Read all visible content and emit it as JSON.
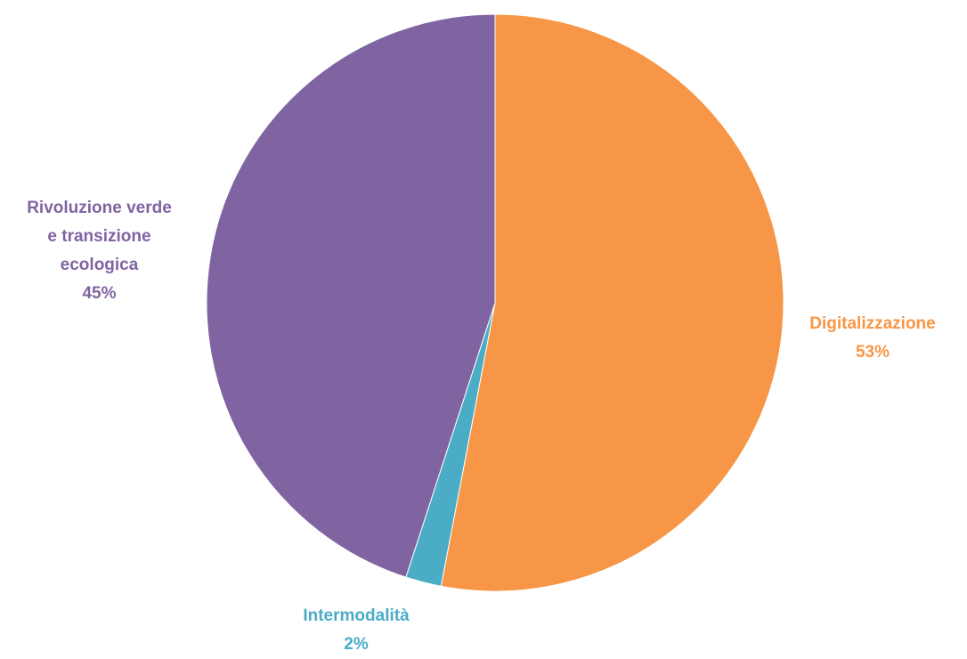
{
  "chart_data": {
    "type": "pie",
    "title": "",
    "slices": [
      {
        "label": "Digitalizzazione",
        "value": 53,
        "value_label": "53%",
        "color": "#F79646"
      },
      {
        "label": "Intermodalità",
        "value": 2,
        "value_label": "2%",
        "color": "#4BACC6"
      },
      {
        "label": "Rivoluzione verde\ne transizione\necologica",
        "value": 45,
        "value_label": "45%",
        "color": "#8064A2"
      }
    ],
    "start_angle": "12 o'clock",
    "direction": "clockwise",
    "legend": "none",
    "labels": "outside"
  }
}
